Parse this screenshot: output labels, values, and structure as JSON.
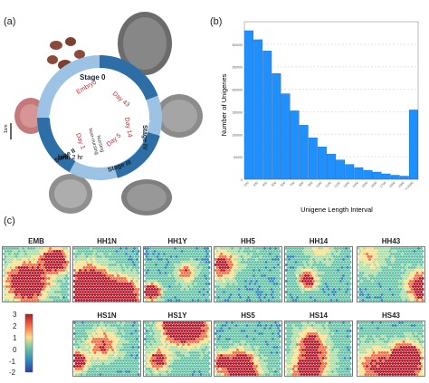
{
  "panels": {
    "a_label": "(a)",
    "b_label": "(b)",
    "c_label": "(c)"
  },
  "lifecycle": {
    "stages": [
      "Stage 0",
      "Stage I",
      "Stage II",
      "Stage III",
      "Stage IV",
      "Stage V"
    ],
    "inner_labels": [
      "Embryo",
      "Day 1",
      "Day 5",
      "Day 14",
      "Day 43"
    ],
    "note_birth": "birth 2 hr",
    "note_nursing": "Non-nursing",
    "note_nursing2": "Nursing",
    "scale_bar": "1cm",
    "colors": {
      "ring_dark": "#2d6ea6",
      "ring_light": "#9cc3e4",
      "inner_text": "#c62828"
    }
  },
  "chart_data": {
    "type": "bar",
    "categories": [
      "200",
      "300",
      "400",
      "500",
      "600",
      "700",
      "800",
      "900",
      "1000",
      "1100",
      "1200",
      "1300",
      "1400",
      "1500",
      "1600",
      "1700",
      "1800",
      "1900",
      ">=2000"
    ],
    "values": [
      330000,
      310000,
      285000,
      235000,
      190000,
      152000,
      120000,
      92000,
      72000,
      56000,
      43000,
      33000,
      26000,
      20000,
      16000,
      12000,
      9000,
      7000,
      154000
    ],
    "ylim": [
      0,
      350000
    ],
    "yticks": [
      0,
      50000,
      100000,
      150000,
      200000,
      250000,
      300000
    ],
    "xlabel": "Unigene Length Interval",
    "ylabel": "Number of Unigenes",
    "bar_color": "#1e90ff",
    "grid": true
  },
  "heatmaps": {
    "row1": [
      "EMB",
      "HH1N",
      "HH1Y",
      "HH5",
      "HH14",
      "HH43"
    ],
    "row2": [
      "HS1N",
      "HS1Y",
      "HS5",
      "HS14",
      "HS43"
    ],
    "colorbar_ticks": [
      "3",
      "2",
      "1",
      "0",
      "-1",
      "-2"
    ]
  }
}
